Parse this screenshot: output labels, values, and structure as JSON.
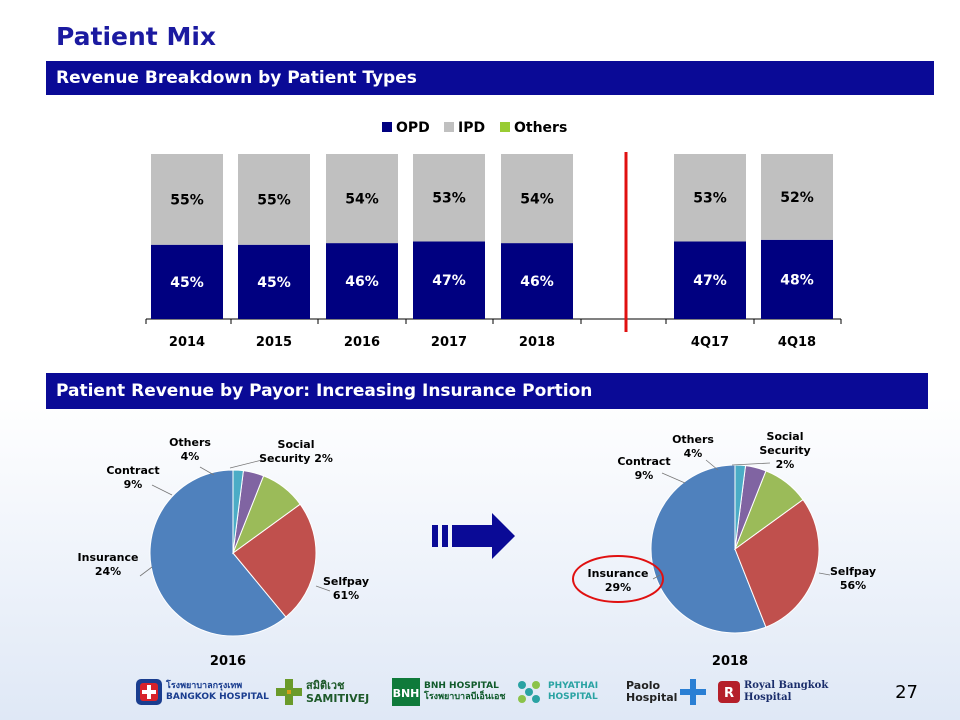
{
  "page": {
    "title": "Patient Mix",
    "number": "27"
  },
  "section1": {
    "title": "Revenue Breakdown by Patient Types"
  },
  "section2": {
    "title": "Patient Revenue by Payor: Increasing Insurance Portion"
  },
  "colors": {
    "header_bg": "#0a0a96",
    "title": "#1b1aa0",
    "opd": "#000080",
    "ipd": "#c0c0c0",
    "others": "#99cc33",
    "selfpay": "#4f81bd",
    "insurance": "#c0504d",
    "contract": "#9bbb59",
    "others_pie": "#8064a2",
    "social_security": "#4bacc6",
    "divider": "#e01010"
  },
  "chart_data": [
    {
      "type": "bar",
      "stacked": true,
      "title": "Revenue Breakdown by Patient Types",
      "legend": [
        "OPD",
        "IPD",
        "Others"
      ],
      "legend_position": "top",
      "categories": [
        "2014",
        "2015",
        "2016",
        "2017",
        "2018",
        "4Q17",
        "4Q18"
      ],
      "series": [
        {
          "name": "OPD",
          "values": [
            45,
            45,
            46,
            47,
            46,
            47,
            48
          ],
          "labels": [
            "45%",
            "45%",
            "46%",
            "47%",
            "46%",
            "47%",
            "48%"
          ]
        },
        {
          "name": "IPD",
          "values": [
            55,
            55,
            54,
            53,
            54,
            53,
            52
          ],
          "labels": [
            "55%",
            "55%",
            "54%",
            "53%",
            "54%",
            "53%",
            "52%"
          ]
        },
        {
          "name": "Others",
          "values": [
            0,
            0,
            0,
            0,
            0,
            0,
            0
          ]
        }
      ],
      "ylim": [
        0,
        100
      ]
    },
    {
      "type": "pie",
      "title": "2016",
      "slices": [
        {
          "name": "Selfpay",
          "value": 61,
          "label": [
            "Selfpay",
            "61%"
          ]
        },
        {
          "name": "Insurance",
          "value": 24,
          "label": [
            "Insurance",
            "24%"
          ]
        },
        {
          "name": "Contract",
          "value": 9,
          "label": [
            "Contract",
            "9%"
          ]
        },
        {
          "name": "Others",
          "value": 4,
          "label": [
            "Others",
            "4%"
          ]
        },
        {
          "name": "Social Security",
          "value": 2,
          "label": [
            "Social",
            "Security 2%"
          ]
        }
      ]
    },
    {
      "type": "pie",
      "title": "2018",
      "slices": [
        {
          "name": "Selfpay",
          "value": 56,
          "label": [
            "Selfpay",
            "56%"
          ]
        },
        {
          "name": "Insurance",
          "value": 29,
          "label": [
            "Insurance",
            "29%"
          ]
        },
        {
          "name": "Contract",
          "value": 9,
          "label": [
            "Contract",
            "9%"
          ]
        },
        {
          "name": "Others",
          "value": 4,
          "label": [
            "Others",
            "4%"
          ]
        },
        {
          "name": "Social Security",
          "value": 2,
          "label": [
            "Social",
            "Security",
            "2%"
          ]
        }
      ],
      "highlight": "Insurance"
    }
  ],
  "logos": [
    {
      "name": "Bangkok Hospital",
      "lines": [
        "โรงพยาบาลกรุงเทพ",
        "BANGKOK HOSPITAL"
      ]
    },
    {
      "name": "Samitivej",
      "lines": [
        "สมิติเวช",
        "SAMITIVEJ"
      ]
    },
    {
      "name": "BNH Hospital",
      "lines": [
        "BNH HOSPITAL",
        "โรงพยาบาลบีเอ็นเอช"
      ]
    },
    {
      "name": "Phyathai",
      "lines": [
        "PHYATHAI",
        "HOSPITAL"
      ]
    },
    {
      "name": "Paolo Hospital",
      "lines": [
        "Paolo",
        "Hospital"
      ]
    },
    {
      "name": "Royal Bangkok",
      "lines": [
        "Royal Bangkok",
        "Hospital"
      ]
    }
  ]
}
